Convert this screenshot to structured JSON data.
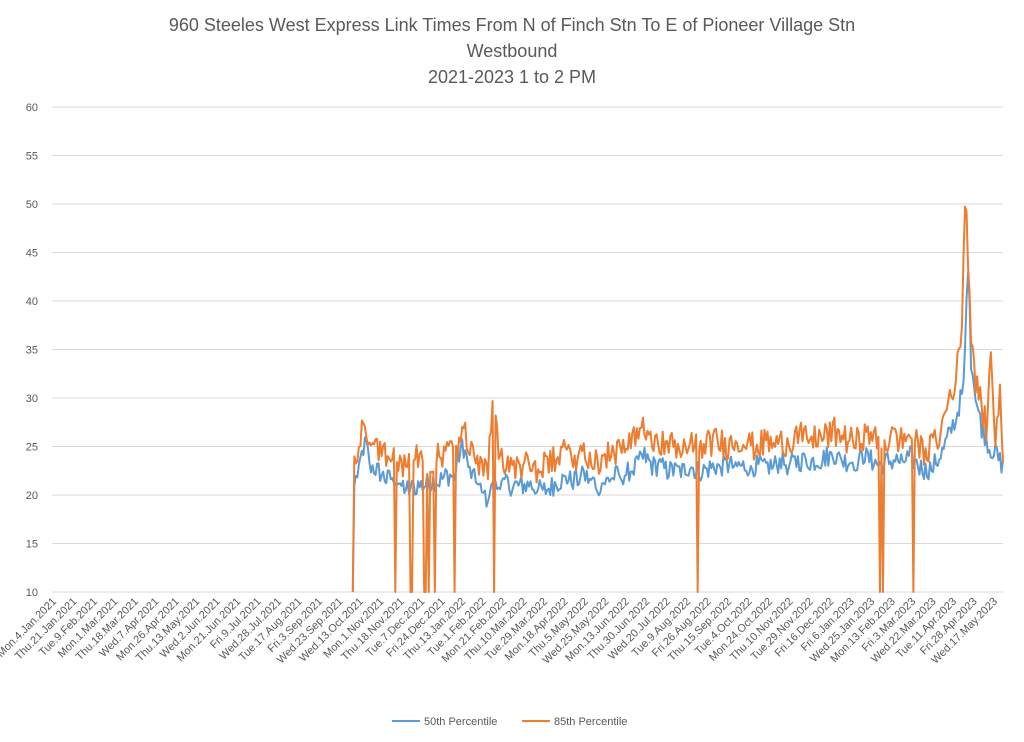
{
  "chart_data": {
    "type": "line",
    "title_lines": [
      "960 Steeles West Express Link Times From N of Finch Stn To E of Pioneer Village Stn",
      "Westbound",
      "2021-2023 1 to 2 PM"
    ],
    "xlabel": "",
    "ylabel": "",
    "ylim": [
      10,
      60
    ],
    "yticks": [
      10,
      15,
      20,
      25,
      30,
      35,
      40,
      45,
      50,
      55,
      60
    ],
    "grid": true,
    "legend_position": "bottom",
    "x_count": 627,
    "x_tick_labels": [
      "Mon.4.Jan.2021",
      "Thu.21.Jan.2021",
      "Tue.9.Feb.2021",
      "Mon.1.Mar.2021",
      "Thu.18.Mar.2021",
      "Wed.7.Apr.2021",
      "Mon.26.Apr.2021",
      "Thu.13.May.2021",
      "Wed.2.Jun.2021",
      "Mon.21.Jun.2021",
      "Fri.9.Jul.2021",
      "Wed.28.Jul.2021",
      "Tue.17.Aug.2021",
      "Fri.3.Sep.2021",
      "Wed.23.Sep.2021",
      "Wed.13.Oct.2021",
      "Mon.1.Nov.2021",
      "Thu.18.Nov.2021",
      "Tue.7.Dec.2021",
      "Fri.24.Dec.2021",
      "Thu.13.Jan.2022",
      "Tue.1.Feb.2022",
      "Mon.21.Feb.2022",
      "Thu.10.Mar.2022",
      "Tue.29.Mar.2022",
      "Mon.18.Apr.2022",
      "Thu.5.May.2022",
      "Wed.25.May.2022",
      "Mon.13.Jun.2022",
      "Thu.30.Jun.2022",
      "Wed.20.Jul.2022",
      "Tue.9.Aug.2022",
      "Fri.26.Aug.2022",
      "Thu.15.Sep.2022",
      "Tue.4.Oct.2022",
      "Mon.24.Oct.2022",
      "Thu.10.Nov.2022",
      "Tue.29.Nov.2022",
      "Fri.16.Dec.2022",
      "Fri.6.Jan.2023",
      "Wed.25.Jan.2023",
      "Mon.13.Feb.2023",
      "Fri.3.Mar.2023",
      "Wed.22.Mar.2023",
      "Tue.11.Apr.2023",
      "Fri.28.Apr.2023",
      "Wed.17.May.2023"
    ],
    "series": [
      {
        "name": "50th Percentile",
        "color": "#5B9BD5",
        "knots": [
          [
            0,
            null
          ],
          [
            197,
            null
          ],
          [
            198,
            10
          ],
          [
            199,
            21
          ],
          [
            203,
            23.5
          ],
          [
            206,
            25.5
          ],
          [
            210,
            23
          ],
          [
            215,
            22.5
          ],
          [
            220,
            21.5
          ],
          [
            225,
            22
          ],
          [
            230,
            21
          ],
          [
            235,
            20.5
          ],
          [
            240,
            21
          ],
          [
            245,
            21
          ],
          [
            250,
            21.5
          ],
          [
            255,
            21.5
          ],
          [
            260,
            22
          ],
          [
            265,
            22
          ],
          [
            270,
            25.5
          ],
          [
            275,
            22.5
          ],
          [
            280,
            21
          ],
          [
            285,
            19.5
          ],
          [
            290,
            20.5
          ],
          [
            295,
            21
          ],
          [
            300,
            21
          ],
          [
            305,
            21
          ],
          [
            310,
            21
          ],
          [
            315,
            21
          ],
          [
            320,
            20.5
          ],
          [
            325,
            20.5
          ],
          [
            330,
            21
          ],
          [
            335,
            21.5
          ],
          [
            340,
            21.5
          ],
          [
            345,
            21.5
          ],
          [
            350,
            22
          ],
          [
            355,
            21.5
          ],
          [
            360,
            21
          ],
          [
            365,
            21.5
          ],
          [
            370,
            22
          ],
          [
            375,
            22
          ],
          [
            380,
            22.5
          ],
          [
            385,
            23
          ],
          [
            390,
            24
          ],
          [
            395,
            23
          ],
          [
            400,
            23
          ],
          [
            405,
            22.5
          ],
          [
            410,
            22.5
          ],
          [
            415,
            22.5
          ],
          [
            420,
            23
          ],
          [
            425,
            22.5
          ],
          [
            430,
            22.5
          ],
          [
            435,
            23
          ],
          [
            440,
            23
          ],
          [
            445,
            23
          ],
          [
            450,
            23
          ],
          [
            455,
            23
          ],
          [
            460,
            23
          ],
          [
            465,
            23
          ],
          [
            470,
            23
          ],
          [
            475,
            23
          ],
          [
            480,
            23.5
          ],
          [
            485,
            23
          ],
          [
            490,
            23.5
          ],
          [
            495,
            23.5
          ],
          [
            500,
            23.5
          ],
          [
            505,
            23.5
          ],
          [
            510,
            24
          ],
          [
            515,
            24
          ],
          [
            520,
            23.5
          ],
          [
            525,
            23.5
          ],
          [
            530,
            23.5
          ],
          [
            535,
            24
          ],
          [
            540,
            23.5
          ],
          [
            545,
            23
          ],
          [
            550,
            23.5
          ],
          [
            555,
            23.5
          ],
          [
            560,
            23.5
          ],
          [
            565,
            24
          ],
          [
            570,
            23
          ],
          [
            575,
            22.5
          ],
          [
            580,
            23
          ],
          [
            585,
            24
          ],
          [
            590,
            26
          ],
          [
            595,
            28
          ],
          [
            600,
            31
          ],
          [
            603,
            44
          ],
          [
            605,
            34
          ],
          [
            608,
            30
          ],
          [
            612,
            27
          ],
          [
            617,
            25
          ],
          [
            622,
            24
          ],
          [
            626,
            23
          ]
        ],
        "volatility": 1.1,
        "dips": []
      },
      {
        "name": "85th Percentile",
        "color": "#ED7D31",
        "knots": [
          [
            0,
            null
          ],
          [
            197,
            null
          ],
          [
            198,
            10
          ],
          [
            199,
            24
          ],
          [
            202,
            24
          ],
          [
            204,
            28.5
          ],
          [
            207,
            25.5
          ],
          [
            212,
            25
          ],
          [
            217,
            24.5
          ],
          [
            222,
            24
          ],
          [
            227,
            24
          ],
          [
            232,
            23
          ],
          [
            237,
            24
          ],
          [
            242,
            23.5
          ],
          [
            247,
            23.5
          ],
          [
            252,
            24
          ],
          [
            257,
            24
          ],
          [
            262,
            24.5
          ],
          [
            267,
            24.5
          ],
          [
            270,
            27.5
          ],
          [
            275,
            24.5
          ],
          [
            280,
            23
          ],
          [
            284,
            22
          ],
          [
            287,
            23
          ],
          [
            291,
            31.5
          ],
          [
            294,
            24
          ],
          [
            300,
            23.5
          ],
          [
            305,
            23
          ],
          [
            310,
            23
          ],
          [
            315,
            23
          ],
          [
            320,
            22.5
          ],
          [
            325,
            23
          ],
          [
            330,
            23.5
          ],
          [
            335,
            24
          ],
          [
            340,
            24.5
          ],
          [
            345,
            24
          ],
          [
            350,
            24.5
          ],
          [
            355,
            24
          ],
          [
            360,
            23.5
          ],
          [
            365,
            24
          ],
          [
            370,
            24.5
          ],
          [
            375,
            24.5
          ],
          [
            380,
            25
          ],
          [
            385,
            26
          ],
          [
            390,
            27.5
          ],
          [
            395,
            26
          ],
          [
            400,
            25.5
          ],
          [
            405,
            25
          ],
          [
            410,
            25
          ],
          [
            415,
            25
          ],
          [
            420,
            25
          ],
          [
            425,
            25
          ],
          [
            430,
            25
          ],
          [
            435,
            25.5
          ],
          [
            440,
            25.5
          ],
          [
            445,
            25
          ],
          [
            450,
            25.5
          ],
          [
            455,
            25.5
          ],
          [
            460,
            25
          ],
          [
            465,
            25
          ],
          [
            470,
            25.5
          ],
          [
            475,
            25.5
          ],
          [
            480,
            25.5
          ],
          [
            485,
            25.5
          ],
          [
            490,
            26
          ],
          [
            495,
            26
          ],
          [
            500,
            26
          ],
          [
            505,
            26
          ],
          [
            510,
            26
          ],
          [
            515,
            26.5
          ],
          [
            520,
            26
          ],
          [
            525,
            25.5
          ],
          [
            530,
            25.5
          ],
          [
            535,
            26
          ],
          [
            540,
            26
          ],
          [
            545,
            25
          ],
          [
            550,
            25.5
          ],
          [
            555,
            26
          ],
          [
            560,
            25.5
          ],
          [
            565,
            26.5
          ],
          [
            570,
            25
          ],
          [
            575,
            24.5
          ],
          [
            580,
            25
          ],
          [
            585,
            26.5
          ],
          [
            590,
            30
          ],
          [
            595,
            32
          ],
          [
            599,
            38
          ],
          [
            601,
            51
          ],
          [
            603,
            45
          ],
          [
            605,
            37
          ],
          [
            608,
            32
          ],
          [
            612,
            29
          ],
          [
            615,
            27
          ],
          [
            618,
            34
          ],
          [
            621,
            26
          ],
          [
            624,
            30
          ],
          [
            626,
            24
          ]
        ],
        "volatility": 1.5,
        "dips": [
          226,
          236,
          237,
          245,
          246,
          248,
          252,
          265,
          291,
          425,
          545,
          547,
          567
        ]
      }
    ]
  },
  "legend": {
    "items": [
      {
        "label": "50th Percentile",
        "color": "#5B9BD5"
      },
      {
        "label": "85th Percentile",
        "color": "#ED7D31"
      }
    ]
  }
}
